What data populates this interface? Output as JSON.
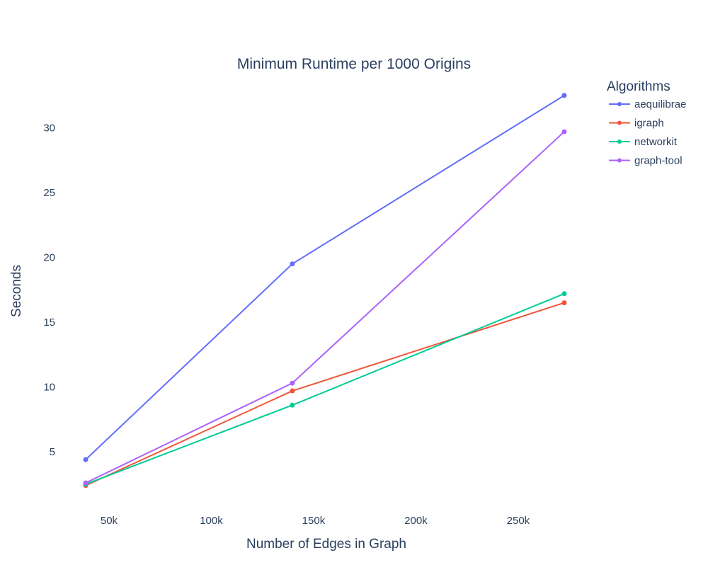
{
  "chart_data": {
    "type": "line",
    "title": "Minimum Runtime per 1000 Origins",
    "xlabel": "Number of Edges in Graph",
    "ylabel": "Seconds",
    "x": [
      38600,
      139600,
      272500
    ],
    "xlim": [
      24400,
      287400
    ],
    "ylim": [
      1.07,
      34.4
    ],
    "xticks": [
      50000,
      100000,
      150000,
      200000,
      250000
    ],
    "xtick_labels": [
      "50k",
      "100k",
      "150k",
      "200k",
      "250k"
    ],
    "yticks": [
      5,
      10,
      15,
      20,
      25,
      30
    ],
    "ytick_labels": [
      "5",
      "10",
      "15",
      "20",
      "25",
      "30"
    ],
    "grid": false,
    "legend_title": "Algorithms",
    "legend_placement": "top-right",
    "series": [
      {
        "name": "aequilibrae",
        "color": "#636efa",
        "values": [
          4.4,
          19.5,
          32.5
        ]
      },
      {
        "name": "igraph",
        "color": "#ef553b",
        "values": [
          2.4,
          9.7,
          16.5
        ]
      },
      {
        "name": "networkit",
        "color": "#00cc96",
        "values": [
          2.5,
          8.6,
          17.2
        ]
      },
      {
        "name": "graph-tool",
        "color": "#ab63fa",
        "values": [
          2.6,
          10.3,
          29.7
        ]
      }
    ]
  }
}
